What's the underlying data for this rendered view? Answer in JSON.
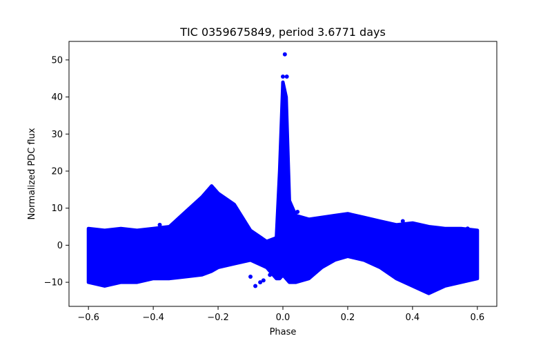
{
  "chart_data": {
    "type": "scatter",
    "title": "TIC 0359675849, period 3.6771 days",
    "xlabel": "Phase",
    "ylabel": "Normalized PDC flux",
    "xlim": [
      -0.66,
      0.66
    ],
    "ylim": [
      -16.5,
      55
    ],
    "xticks": [
      -0.6,
      -0.4,
      -0.2,
      0.0,
      0.2,
      0.4,
      0.6
    ],
    "xtick_labels": [
      "−0.6",
      "−0.4",
      "−0.2",
      "0.0",
      "0.2",
      "0.4",
      "0.6"
    ],
    "yticks": [
      -10,
      0,
      10,
      20,
      30,
      40,
      50
    ],
    "ytick_labels": [
      "−10",
      "0",
      "10",
      "20",
      "30",
      "40",
      "50"
    ],
    "grid": false,
    "legend": "none",
    "marker_color": "#0000ff",
    "band": {
      "x": [
        -0.6,
        -0.55,
        -0.5,
        -0.45,
        -0.4,
        -0.35,
        -0.3,
        -0.25,
        -0.22,
        -0.2,
        -0.15,
        -0.1,
        -0.05,
        -0.02,
        -0.01,
        0.0,
        0.01,
        0.02,
        0.04,
        0.08,
        0.12,
        0.16,
        0.2,
        0.25,
        0.3,
        0.35,
        0.4,
        0.45,
        0.5,
        0.55,
        0.6
      ],
      "y_upper": [
        4.5,
        4,
        4.5,
        4,
        4.5,
        5,
        9,
        13,
        16,
        14,
        11,
        4,
        1,
        2,
        20,
        44,
        40,
        12,
        8,
        7,
        7.5,
        8,
        8.5,
        7.5,
        6.5,
        5.5,
        6,
        5,
        4.5,
        4.5,
        4
      ],
      "y_lower": [
        -10,
        -11,
        -10,
        -10,
        -9,
        -9,
        -8.5,
        -8,
        -7,
        -6,
        -5,
        -4,
        -6,
        -9,
        -9,
        -8,
        -9,
        -10,
        -10,
        -9,
        -6,
        -4,
        -3,
        -4,
        -6,
        -9,
        -11,
        -13,
        -11,
        -10,
        -9
      ]
    },
    "outliers": [
      {
        "x": 0.006,
        "y": 51.5
      },
      {
        "x": 0.0,
        "y": 45.5
      },
      {
        "x": 0.012,
        "y": 45.5
      },
      {
        "x": -0.04,
        "y": -8
      },
      {
        "x": -0.07,
        "y": -10
      },
      {
        "x": -0.085,
        "y": -11
      },
      {
        "x": -0.1,
        "y": -8.5
      },
      {
        "x": -0.06,
        "y": -9.5
      },
      {
        "x": 0.045,
        "y": 9
      },
      {
        "x": -0.38,
        "y": 5.5
      },
      {
        "x": 0.37,
        "y": 6.5
      },
      {
        "x": 0.42,
        "y": 5.5
      },
      {
        "x": 0.57,
        "y": 4.5
      },
      {
        "x": -0.13,
        "y": -4.5
      },
      {
        "x": -0.15,
        "y": -3.5
      }
    ]
  }
}
